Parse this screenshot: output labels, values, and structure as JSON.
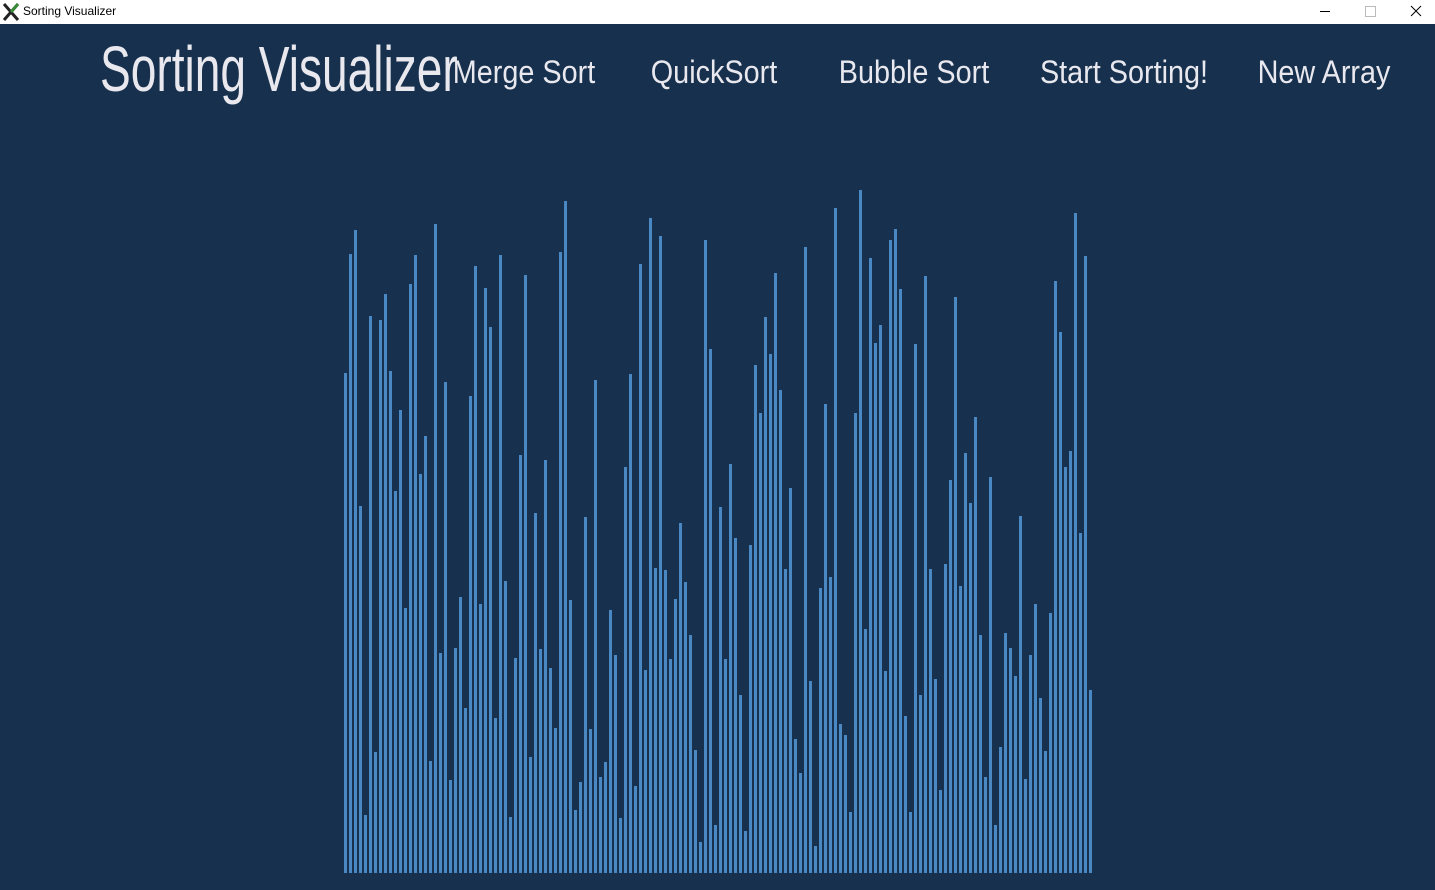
{
  "window_title": "Sorting Visualizer",
  "header": {
    "title": "Sorting Visualizer",
    "nav": [
      "Merge Sort",
      "QuickSort",
      "Bubble Sort",
      "Start Sorting!",
      "New Array"
    ]
  },
  "array": [
    500,
    619,
    643,
    367,
    58,
    557,
    121,
    553,
    579,
    502,
    382,
    463,
    265,
    589,
    618,
    399,
    437,
    112,
    649,
    220,
    491,
    93,
    225,
    276,
    165,
    477,
    607,
    269,
    585,
    546,
    155,
    618,
    292,
    56,
    215,
    418,
    598,
    116,
    360,
    224,
    413,
    205,
    145,
    621,
    672,
    273,
    63,
    91,
    356,
    144,
    493,
    96,
    111,
    263,
    218,
    55,
    406,
    499,
    87,
    609,
    203,
    655,
    305,
    637,
    303,
    214,
    274,
    350,
    291,
    238,
    123,
    31,
    633,
    524,
    48,
    366,
    214,
    409,
    335,
    178,
    42,
    328,
    508,
    460,
    556,
    519,
    600,
    483,
    304,
    385,
    134,
    100,
    626,
    192,
    27,
    285,
    469,
    296,
    665,
    149,
    138,
    61,
    460,
    683,
    244,
    615,
    530,
    548,
    202,
    633,
    644,
    584,
    157,
    61,
    529,
    178,
    597,
    304,
    194,
    83,
    309,
    393,
    576,
    287,
    420,
    370,
    456,
    238,
    96,
    396,
    48,
    126,
    240,
    225,
    197,
    357,
    94,
    218,
    269,
    175,
    122,
    260,
    592,
    541,
    406,
    422,
    660,
    340,
    617,
    183
  ]
}
